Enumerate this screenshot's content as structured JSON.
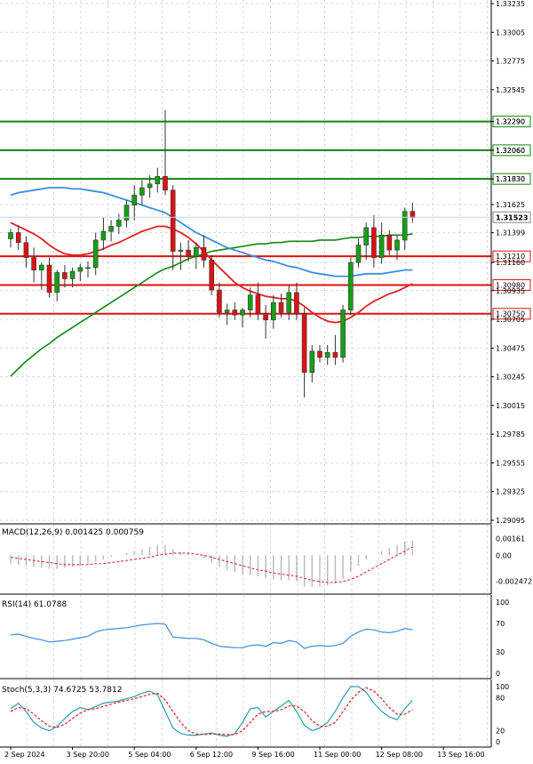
{
  "chart_data": {
    "type": "candlestick",
    "price_ticks": [
      "1.33235",
      "1.33005",
      "1.32775",
      "1.32545",
      "1.32290",
      "1.32060",
      "1.31830",
      "1.31625",
      "1.31399",
      "1.31160",
      "1.30935",
      "1.30705",
      "1.30475",
      "1.30245",
      "1.30015",
      "1.29785",
      "1.29555",
      "1.29325",
      "1.29095"
    ],
    "hlines": [
      {
        "value": 1.3229,
        "label": "1.32290",
        "color": "#0a8a0a"
      },
      {
        "value": 1.3206,
        "label": "1.32060",
        "color": "#0a8a0a"
      },
      {
        "value": 1.3183,
        "label": "1.31830",
        "color": "#0a8a0a"
      },
      {
        "value": 1.3121,
        "label": "1.31210",
        "color": "#e01010"
      },
      {
        "value": 1.3098,
        "label": "1.30980",
        "color": "#e01010"
      },
      {
        "value": 1.3075,
        "label": "1.30750",
        "color": "#e01010"
      }
    ],
    "current_price": {
      "value": 1.31523,
      "label": "1.31523"
    },
    "x_labels": [
      {
        "index": 0,
        "label": "2 Sep 2024"
      },
      {
        "index": 8,
        "label": "3 Sep 20:00"
      },
      {
        "index": 16,
        "label": "5 Sep 04:00"
      },
      {
        "index": 24,
        "label": "6 Sep 12:00"
      },
      {
        "index": 32,
        "label": "9 Sep 16:00"
      },
      {
        "index": 40,
        "label": "11 Sep 00:00"
      },
      {
        "index": 48,
        "label": "12 Sep 08:00"
      },
      {
        "index": 56,
        "label": "13 Sep 16:00"
      }
    ],
    "candles": [
      [
        1.3135,
        1.3143,
        1.3128,
        1.314
      ],
      [
        1.314,
        1.3146,
        1.3126,
        1.3132
      ],
      [
        1.3132,
        1.3137,
        1.3112,
        1.312
      ],
      [
        1.312,
        1.3128,
        1.31,
        1.311
      ],
      [
        1.311,
        1.3116,
        1.3094,
        1.3114
      ],
      [
        1.3114,
        1.312,
        1.3088,
        1.3092
      ],
      [
        1.3092,
        1.311,
        1.3085,
        1.3108
      ],
      [
        1.3108,
        1.3114,
        1.3096,
        1.3103
      ],
      [
        1.3103,
        1.3112,
        1.3096,
        1.3109
      ],
      [
        1.3109,
        1.3115,
        1.3101,
        1.3112
      ],
      [
        1.3112,
        1.3117,
        1.3104,
        1.3112
      ],
      [
        1.3112,
        1.314,
        1.3106,
        1.3134
      ],
      [
        1.3134,
        1.3152,
        1.3126,
        1.3141
      ],
      [
        1.3141,
        1.315,
        1.3133,
        1.3145
      ],
      [
        1.3145,
        1.3155,
        1.3139,
        1.315
      ],
      [
        1.315,
        1.3166,
        1.3144,
        1.3162
      ],
      [
        1.3162,
        1.3178,
        1.315,
        1.317
      ],
      [
        1.317,
        1.3182,
        1.3162,
        1.3176
      ],
      [
        1.3176,
        1.3186,
        1.3168,
        1.3179
      ],
      [
        1.3179,
        1.3192,
        1.3172,
        1.3185
      ],
      [
        1.3185,
        1.3238,
        1.317,
        1.3174
      ],
      [
        1.3174,
        1.3178,
        1.311,
        1.3125
      ],
      [
        1.3125,
        1.3132,
        1.311,
        1.3126
      ],
      [
        1.3126,
        1.3134,
        1.3117,
        1.3121
      ],
      [
        1.3121,
        1.3132,
        1.3111,
        1.3128
      ],
      [
        1.3128,
        1.3138,
        1.3112,
        1.3118
      ],
      [
        1.3118,
        1.3122,
        1.309,
        1.3094
      ],
      [
        1.3094,
        1.31,
        1.3072,
        1.3076
      ],
      [
        1.3076,
        1.3083,
        1.3066,
        1.3078
      ],
      [
        1.3078,
        1.3084,
        1.307,
        1.3074
      ],
      [
        1.3074,
        1.308,
        1.3064,
        1.3078
      ],
      [
        1.3078,
        1.3096,
        1.3072,
        1.309
      ],
      [
        1.309,
        1.31,
        1.307,
        1.3075
      ],
      [
        1.3075,
        1.3082,
        1.3055,
        1.307
      ],
      [
        1.307,
        1.309,
        1.3063,
        1.3084
      ],
      [
        1.3084,
        1.3091,
        1.3072,
        1.3076
      ],
      [
        1.3076,
        1.3098,
        1.307,
        1.3092
      ],
      [
        1.3092,
        1.31,
        1.307,
        1.3075
      ],
      [
        1.3075,
        1.308,
        1.3008,
        1.3028
      ],
      [
        1.3028,
        1.305,
        1.302,
        1.3045
      ],
      [
        1.3045,
        1.305,
        1.3036,
        1.304
      ],
      [
        1.304,
        1.305,
        1.3034,
        1.3044
      ],
      [
        1.3044,
        1.3058,
        1.3034,
        1.304
      ],
      [
        1.304,
        1.3082,
        1.3036,
        1.3078
      ],
      [
        1.3078,
        1.312,
        1.3074,
        1.3116
      ],
      [
        1.3116,
        1.3135,
        1.3112,
        1.313
      ],
      [
        1.313,
        1.3148,
        1.3118,
        1.3144
      ],
      [
        1.3144,
        1.3154,
        1.3112,
        1.312
      ],
      [
        1.312,
        1.3148,
        1.3115,
        1.3138
      ],
      [
        1.3138,
        1.3142,
        1.3122,
        1.3126
      ],
      [
        1.3126,
        1.3138,
        1.3118,
        1.3134
      ],
      [
        1.3134,
        1.316,
        1.3126,
        1.3157
      ],
      [
        1.3157,
        1.3164,
        1.3148,
        1.3152
      ]
    ],
    "ma_blue": [
      1.317,
      1.3172,
      1.3173,
      1.3174,
      1.3175,
      1.3176,
      1.3176,
      1.3176,
      1.3175,
      1.3175,
      1.3174,
      1.3173,
      1.3172,
      1.317,
      1.3168,
      1.3166,
      1.3164,
      1.3162,
      1.316,
      1.3158,
      1.3156,
      1.3152,
      1.3148,
      1.3144,
      1.314,
      1.3137,
      1.3134,
      1.3131,
      1.3128,
      1.3126,
      1.3124,
      1.3122,
      1.312,
      1.3118,
      1.3117,
      1.3115,
      1.3113,
      1.3112,
      1.311,
      1.3108,
      1.3107,
      1.3106,
      1.3105,
      1.3105,
      1.3105,
      1.3106,
      1.3107,
      1.3107,
      1.3107,
      1.3108,
      1.3109,
      1.311,
      1.311
    ],
    "ma_red": [
      1.3148,
      1.3145,
      1.3142,
      1.3139,
      1.3135,
      1.313,
      1.3126,
      1.3123,
      1.3122,
      1.3122,
      1.3123,
      1.3125,
      1.3127,
      1.313,
      1.3132,
      1.3135,
      1.3138,
      1.3141,
      1.3143,
      1.3145,
      1.3145,
      1.3143,
      1.314,
      1.3136,
      1.3131,
      1.3125,
      1.3118,
      1.3112,
      1.3106,
      1.31,
      1.3096,
      1.3093,
      1.3091,
      1.3089,
      1.3088,
      1.3087,
      1.3087,
      1.3085,
      1.3081,
      1.3076,
      1.3072,
      1.3069,
      1.3068,
      1.3069,
      1.3072,
      1.3076,
      1.3081,
      1.3085,
      1.3088,
      1.3091,
      1.3093,
      1.3096,
      1.3099
    ],
    "ma_green": [
      1.3025,
      1.3031,
      1.3037,
      1.3042,
      1.3047,
      1.3051,
      1.3056,
      1.306,
      1.3064,
      1.3068,
      1.3072,
      1.3076,
      1.308,
      1.3084,
      1.3088,
      1.3092,
      1.3096,
      1.31,
      1.3104,
      1.3108,
      1.3111,
      1.3113,
      1.3116,
      1.3119,
      1.3121,
      1.3123,
      1.3125,
      1.3126,
      1.3127,
      1.3128,
      1.3129,
      1.313,
      1.3131,
      1.3131,
      1.3132,
      1.3132,
      1.3133,
      1.3133,
      1.3133,
      1.3133,
      1.3134,
      1.3134,
      1.3134,
      1.3135,
      1.3136,
      1.3136,
      1.3137,
      1.3137,
      1.3137,
      1.3138,
      1.3138,
      1.3138,
      1.3139
    ],
    "macd": {
      "label": "MACD(12,26,9) 0.001425 0.000759",
      "ticks": [
        "0.00161",
        "0.00",
        "-0.002472"
      ],
      "ylim": [
        -0.0032,
        0.0024
      ],
      "histogram": [
        -0.0008,
        -0.0009,
        -0.001,
        -0.0011,
        -0.0012,
        -0.0013,
        -0.0013,
        -0.0012,
        -0.0011,
        -0.001,
        -0.0008,
        -0.0006,
        -0.0004,
        -0.0002,
        0.0,
        0.0002,
        0.0004,
        0.0006,
        0.0008,
        0.001,
        0.001,
        0.0006,
        0.0003,
        0.0002,
        0.0,
        -0.0003,
        -0.0007,
        -0.0011,
        -0.0014,
        -0.0016,
        -0.0018,
        -0.0019,
        -0.002,
        -0.0022,
        -0.0023,
        -0.0024,
        -0.0024,
        -0.0025,
        -0.003,
        -0.003,
        -0.003,
        -0.0029,
        -0.0027,
        -0.0022,
        -0.0016,
        -0.001,
        -0.0004,
        0.0,
        0.0004,
        0.0007,
        0.001,
        0.0013,
        0.0014
      ],
      "signal": [
        -0.0002,
        -0.0003,
        -0.0004,
        -0.0005,
        -0.0006,
        -0.0007,
        -0.0008,
        -0.0009,
        -0.0009,
        -0.0009,
        -0.0009,
        -0.0008,
        -0.0008,
        -0.0007,
        -0.0006,
        -0.0005,
        -0.0004,
        -0.0003,
        -0.0002,
        0.0,
        0.0001,
        0.0002,
        0.0002,
        0.0002,
        0.0001,
        0.0,
        -0.0002,
        -0.0004,
        -0.0006,
        -0.0008,
        -0.001,
        -0.0012,
        -0.0014,
        -0.0015,
        -0.0017,
        -0.0018,
        -0.0019,
        -0.002,
        -0.0022,
        -0.0024,
        -0.0025,
        -0.0026,
        -0.0026,
        -0.0025,
        -0.0023,
        -0.002,
        -0.0016,
        -0.0012,
        -0.0008,
        -0.0004,
        0.0,
        0.0004,
        0.0008
      ]
    },
    "rsi": {
      "label": "RSI(14) 61.0788",
      "ticks": [
        {
          "value": 100,
          "label": "100"
        },
        {
          "value": 70,
          "label": "70"
        },
        {
          "value": 30,
          "label": "30"
        },
        {
          "value": 0,
          "label": "0"
        }
      ],
      "values": [
        54,
        55,
        52,
        49,
        47,
        44,
        45,
        46,
        48,
        50,
        52,
        58,
        61,
        62,
        63,
        64,
        66,
        68,
        69,
        70,
        69,
        51,
        50,
        49,
        49,
        47,
        42,
        38,
        37,
        36,
        36,
        39,
        40,
        38,
        43,
        42,
        46,
        44,
        35,
        38,
        39,
        38,
        39,
        42,
        52,
        58,
        62,
        61,
        58,
        57,
        59,
        63,
        61
      ]
    },
    "stoch": {
      "label": "Stoch(5,3,3) 74.6725 53.7812",
      "ticks": [
        {
          "value": 100,
          "label": "100"
        },
        {
          "value": 80,
          "label": "80"
        },
        {
          "value": 20,
          "label": "20"
        },
        {
          "value": 0,
          "label": "0"
        }
      ],
      "k": [
        60,
        70,
        55,
        35,
        25,
        20,
        28,
        42,
        55,
        62,
        58,
        64,
        70,
        72,
        74,
        78,
        82,
        88,
        92,
        85,
        55,
        25,
        15,
        12,
        12,
        14,
        16,
        12,
        10,
        15,
        35,
        60,
        62,
        45,
        55,
        65,
        75,
        55,
        30,
        20,
        25,
        35,
        55,
        80,
        100,
        100,
        90,
        70,
        55,
        45,
        40,
        60,
        75
      ],
      "d": [
        55,
        62,
        60,
        50,
        38,
        28,
        26,
        32,
        42,
        52,
        58,
        60,
        64,
        68,
        72,
        75,
        78,
        82,
        86,
        88,
        76,
        55,
        35,
        20,
        14,
        13,
        14,
        14,
        13,
        13,
        20,
        35,
        50,
        55,
        55,
        58,
        65,
        65,
        55,
        38,
        28,
        28,
        35,
        55,
        75,
        90,
        98,
        92,
        78,
        62,
        50,
        50,
        58
      ]
    }
  }
}
